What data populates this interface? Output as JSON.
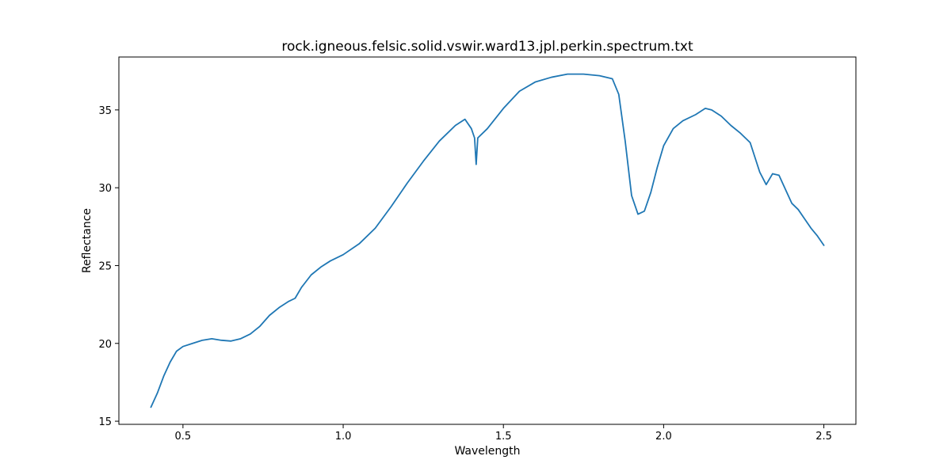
{
  "chart_data": {
    "type": "line",
    "title": "rock.igneous.felsic.solid.vswir.ward13.jpl.perkin.spectrum.txt",
    "xlabel": "Wavelength",
    "ylabel": "Reflectance",
    "xlim": [
      0.3,
      2.6
    ],
    "ylim": [
      14.8,
      38.4
    ],
    "xticks": [
      0.5,
      1.0,
      1.5,
      2.0,
      2.5
    ],
    "xtick_labels": [
      "0.5",
      "1.0",
      "1.5",
      "2.0",
      "2.5"
    ],
    "yticks": [
      15,
      20,
      25,
      30,
      35
    ],
    "ytick_labels": [
      "15",
      "20",
      "25",
      "30",
      "35"
    ],
    "grid": false,
    "series": [
      {
        "name": "spectrum",
        "color": "#1f77b4",
        "x": [
          0.4,
          0.42,
          0.44,
          0.46,
          0.48,
          0.5,
          0.53,
          0.56,
          0.59,
          0.62,
          0.65,
          0.68,
          0.71,
          0.74,
          0.77,
          0.8,
          0.83,
          0.85,
          0.87,
          0.9,
          0.93,
          0.96,
          1.0,
          1.05,
          1.1,
          1.15,
          1.2,
          1.25,
          1.3,
          1.35,
          1.38,
          1.4,
          1.41,
          1.415,
          1.42,
          1.45,
          1.5,
          1.55,
          1.6,
          1.65,
          1.7,
          1.75,
          1.8,
          1.84,
          1.86,
          1.88,
          1.9,
          1.92,
          1.94,
          1.96,
          1.98,
          2.0,
          2.03,
          2.06,
          2.1,
          2.13,
          2.15,
          2.18,
          2.21,
          2.24,
          2.27,
          2.3,
          2.32,
          2.34,
          2.36,
          2.38,
          2.4,
          2.42,
          2.44,
          2.46,
          2.48,
          2.5
        ],
        "y": [
          15.9,
          16.8,
          17.9,
          18.8,
          19.5,
          19.8,
          20.0,
          20.2,
          20.3,
          20.2,
          20.15,
          20.3,
          20.6,
          21.1,
          21.8,
          22.3,
          22.7,
          22.9,
          23.6,
          24.4,
          24.9,
          25.3,
          25.7,
          26.4,
          27.4,
          28.8,
          30.3,
          31.7,
          33.0,
          34.0,
          34.4,
          33.8,
          33.2,
          31.5,
          33.2,
          33.8,
          35.1,
          36.2,
          36.8,
          37.1,
          37.3,
          37.3,
          37.2,
          37.0,
          36.0,
          33.0,
          29.5,
          28.3,
          28.5,
          29.7,
          31.3,
          32.7,
          33.8,
          34.3,
          34.7,
          35.1,
          35.0,
          34.6,
          34.0,
          33.5,
          32.9,
          31.0,
          30.2,
          30.9,
          30.8,
          29.9,
          29.0,
          28.6,
          28.0,
          27.4,
          26.9,
          26.3
        ]
      }
    ]
  }
}
